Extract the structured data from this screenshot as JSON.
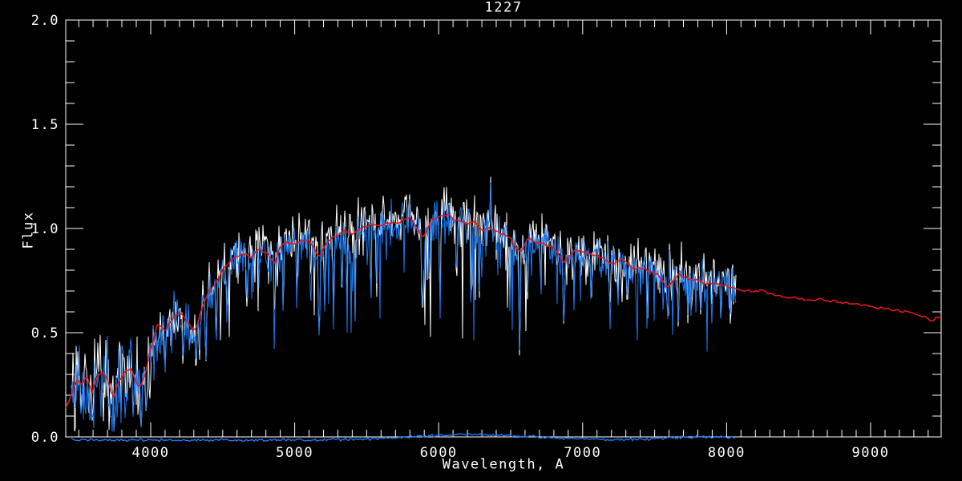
{
  "chart_data": {
    "type": "line",
    "title": "1227",
    "xlabel": "Wavelength, A",
    "ylabel": "Flux",
    "xlim": [
      3410,
      9490
    ],
    "ylim": [
      0.0,
      2.0
    ],
    "grid": false,
    "background_color": "#000000",
    "frame_color": "#ffffff",
    "x_ticks": [
      {
        "v": 4000,
        "label": "4000"
      },
      {
        "v": 5000,
        "label": "5000"
      },
      {
        "v": 6000,
        "label": "6000"
      },
      {
        "v": 7000,
        "label": "7000"
      },
      {
        "v": 8000,
        "label": "8000"
      },
      {
        "v": 9000,
        "label": "9000"
      }
    ],
    "y_ticks": [
      {
        "v": 0.0,
        "label": "0.0"
      },
      {
        "v": 0.5,
        "label": "0.5"
      },
      {
        "v": 1.0,
        "label": "1.0"
      },
      {
        "v": 1.5,
        "label": "1.5"
      },
      {
        "v": 2.0,
        "label": "2.0"
      }
    ],
    "x_minor_step": 100,
    "y_minor_step": 0.1,
    "series": [
      {
        "name": "observed-spectrum-white",
        "color": "#ffffff",
        "range": [
          3448,
          8065
        ],
        "role": "noisy observed spectrum drawn first",
        "offset": 0.028,
        "noise_scale": 1.15
      },
      {
        "name": "observed-spectrum-blue",
        "color": "#1b79f2",
        "range": [
          3448,
          8065
        ],
        "role": "noisy observed spectrum drawn on top",
        "offset": 0.0,
        "noise_scale": 1.0
      },
      {
        "name": "model-fit-red",
        "color": "#e21717",
        "range": [
          3412,
          9490
        ],
        "role": "smooth template fit over full range"
      },
      {
        "name": "error-spectrum-blue",
        "color": "#1b79f2",
        "range": [
          3450,
          8065
        ],
        "role": "error spectrum near zero flux"
      }
    ],
    "continuum_points": [
      [
        3410,
        0.14
      ],
      [
        3450,
        0.2
      ],
      [
        3490,
        0.28
      ],
      [
        3520,
        0.24
      ],
      [
        3555,
        0.3
      ],
      [
        3590,
        0.21
      ],
      [
        3630,
        0.29
      ],
      [
        3665,
        0.31
      ],
      [
        3700,
        0.28
      ],
      [
        3740,
        0.18
      ],
      [
        3780,
        0.27
      ],
      [
        3820,
        0.31
      ],
      [
        3860,
        0.33
      ],
      [
        3900,
        0.26
      ],
      [
        3935,
        0.24
      ],
      [
        3965,
        0.31
      ],
      [
        4000,
        0.42
      ],
      [
        4045,
        0.54
      ],
      [
        4100,
        0.51
      ],
      [
        4150,
        0.57
      ],
      [
        4200,
        0.6
      ],
      [
        4250,
        0.56
      ],
      [
        4305,
        0.5
      ],
      [
        4350,
        0.6
      ],
      [
        4400,
        0.69
      ],
      [
        4455,
        0.74
      ],
      [
        4500,
        0.8
      ],
      [
        4550,
        0.84
      ],
      [
        4600,
        0.87
      ],
      [
        4650,
        0.88
      ],
      [
        4700,
        0.86
      ],
      [
        4750,
        0.9
      ],
      [
        4800,
        0.89
      ],
      [
        4861,
        0.83
      ],
      [
        4900,
        0.91
      ],
      [
        4950,
        0.94
      ],
      [
        5000,
        0.92
      ],
      [
        5050,
        0.94
      ],
      [
        5100,
        0.95
      ],
      [
        5170,
        0.86
      ],
      [
        5230,
        0.94
      ],
      [
        5300,
        0.97
      ],
      [
        5350,
        0.99
      ],
      [
        5400,
        0.97
      ],
      [
        5450,
        1.0
      ],
      [
        5500,
        1.01
      ],
      [
        5550,
        1.02
      ],
      [
        5600,
        1.01
      ],
      [
        5650,
        1.03
      ],
      [
        5700,
        1.02
      ],
      [
        5750,
        1.04
      ],
      [
        5800,
        1.05
      ],
      [
        5890,
        0.95
      ],
      [
        5950,
        1.04
      ],
      [
        6000,
        1.06
      ],
      [
        6060,
        1.07
      ],
      [
        6100,
        1.05
      ],
      [
        6150,
        1.03
      ],
      [
        6200,
        1.02
      ],
      [
        6250,
        1.03
      ],
      [
        6300,
        0.99
      ],
      [
        6360,
        1.0
      ],
      [
        6400,
        0.99
      ],
      [
        6450,
        0.97
      ],
      [
        6500,
        0.95
      ],
      [
        6563,
        0.88
      ],
      [
        6620,
        0.95
      ],
      [
        6700,
        0.93
      ],
      [
        6800,
        0.91
      ],
      [
        6870,
        0.84
      ],
      [
        6950,
        0.9
      ],
      [
        7000,
        0.89
      ],
      [
        7100,
        0.87
      ],
      [
        7200,
        0.83
      ],
      [
        7270,
        0.85
      ],
      [
        7350,
        0.81
      ],
      [
        7450,
        0.8
      ],
      [
        7520,
        0.78
      ],
      [
        7594,
        0.72
      ],
      [
        7660,
        0.78
      ],
      [
        7750,
        0.76
      ],
      [
        7850,
        0.74
      ],
      [
        7950,
        0.73
      ],
      [
        8050,
        0.71
      ],
      [
        8150,
        0.7
      ],
      [
        8250,
        0.7
      ],
      [
        8350,
        0.68
      ],
      [
        8450,
        0.67
      ],
      [
        8550,
        0.66
      ],
      [
        8650,
        0.66
      ],
      [
        8750,
        0.65
      ],
      [
        8850,
        0.64
      ],
      [
        8950,
        0.63
      ],
      [
        9050,
        0.62
      ],
      [
        9150,
        0.61
      ],
      [
        9250,
        0.6
      ],
      [
        9350,
        0.58
      ],
      [
        9420,
        0.56
      ],
      [
        9490,
        0.58
      ]
    ],
    "absorption_lines": [
      [
        3516,
        0.1,
        10
      ],
      [
        3594,
        0.08,
        10
      ],
      [
        3750,
        0.07,
        10
      ],
      [
        3830,
        0.16,
        9
      ],
      [
        3880,
        0.12,
        9
      ],
      [
        3933,
        0.04,
        9
      ],
      [
        3968,
        0.1,
        9
      ],
      [
        4045,
        0.36,
        8
      ],
      [
        4101,
        0.33,
        9
      ],
      [
        4144,
        0.42,
        8
      ],
      [
        4226,
        0.32,
        9
      ],
      [
        4271,
        0.4,
        8
      ],
      [
        4315,
        0.35,
        9
      ],
      [
        4340,
        0.38,
        8
      ],
      [
        4383,
        0.32,
        9
      ],
      [
        4455,
        0.47,
        8
      ],
      [
        4531,
        0.52,
        8
      ],
      [
        4668,
        0.58,
        8
      ],
      [
        4861,
        0.52,
        9
      ],
      [
        4920,
        0.62,
        7
      ],
      [
        5015,
        0.6,
        7
      ],
      [
        5110,
        0.62,
        7
      ],
      [
        5170,
        0.44,
        10
      ],
      [
        5210,
        0.55,
        7
      ],
      [
        5270,
        0.5,
        8
      ],
      [
        5328,
        0.58,
        7
      ],
      [
        5364,
        0.58,
        7
      ],
      [
        5420,
        0.62,
        7
      ],
      [
        5530,
        0.65,
        7
      ],
      [
        5570,
        0.68,
        7
      ],
      [
        5890,
        0.55,
        14
      ],
      [
        5935,
        0.68,
        7
      ],
      [
        6010,
        0.6,
        8
      ],
      [
        6125,
        0.66,
        7
      ],
      [
        6230,
        0.62,
        7
      ],
      [
        6280,
        0.6,
        8
      ],
      [
        6495,
        0.6,
        7
      ],
      [
        6563,
        0.33,
        8
      ],
      [
        6618,
        0.62,
        6
      ],
      [
        6710,
        0.62,
        6
      ],
      [
        6870,
        0.55,
        12
      ],
      [
        6940,
        0.65,
        7
      ],
      [
        7060,
        0.62,
        7
      ],
      [
        7190,
        0.55,
        9
      ],
      [
        7245,
        0.6,
        7
      ],
      [
        7310,
        0.58,
        7
      ],
      [
        7450,
        0.6,
        7
      ],
      [
        7594,
        0.5,
        12
      ],
      [
        7665,
        0.52,
        9
      ],
      [
        7730,
        0.6,
        7
      ],
      [
        7820,
        0.58,
        7
      ],
      [
        7900,
        0.6,
        7
      ],
      [
        7960,
        0.58,
        7
      ],
      [
        8025,
        0.55,
        7
      ]
    ],
    "emission_spikes": [
      [
        6360,
        1.22
      ],
      [
        7173,
        0.94
      ],
      [
        7604,
        0.9
      ]
    ],
    "noise": {
      "seed": 12270,
      "amp": 0.045,
      "amp_left": 0.085,
      "left_wl": 4005,
      "hair_prob": 0.27,
      "hair_depth": 0.22,
      "deep_prob": 0.04
    },
    "error_spectrum": {
      "base": -0.015,
      "hump_center": 6250,
      "hump_sigma": 600,
      "hump_amp": 0.026,
      "hump2_center": 7850,
      "hump2_sigma": 350,
      "hump2_amp": 0.016,
      "noise": 0.004
    }
  }
}
